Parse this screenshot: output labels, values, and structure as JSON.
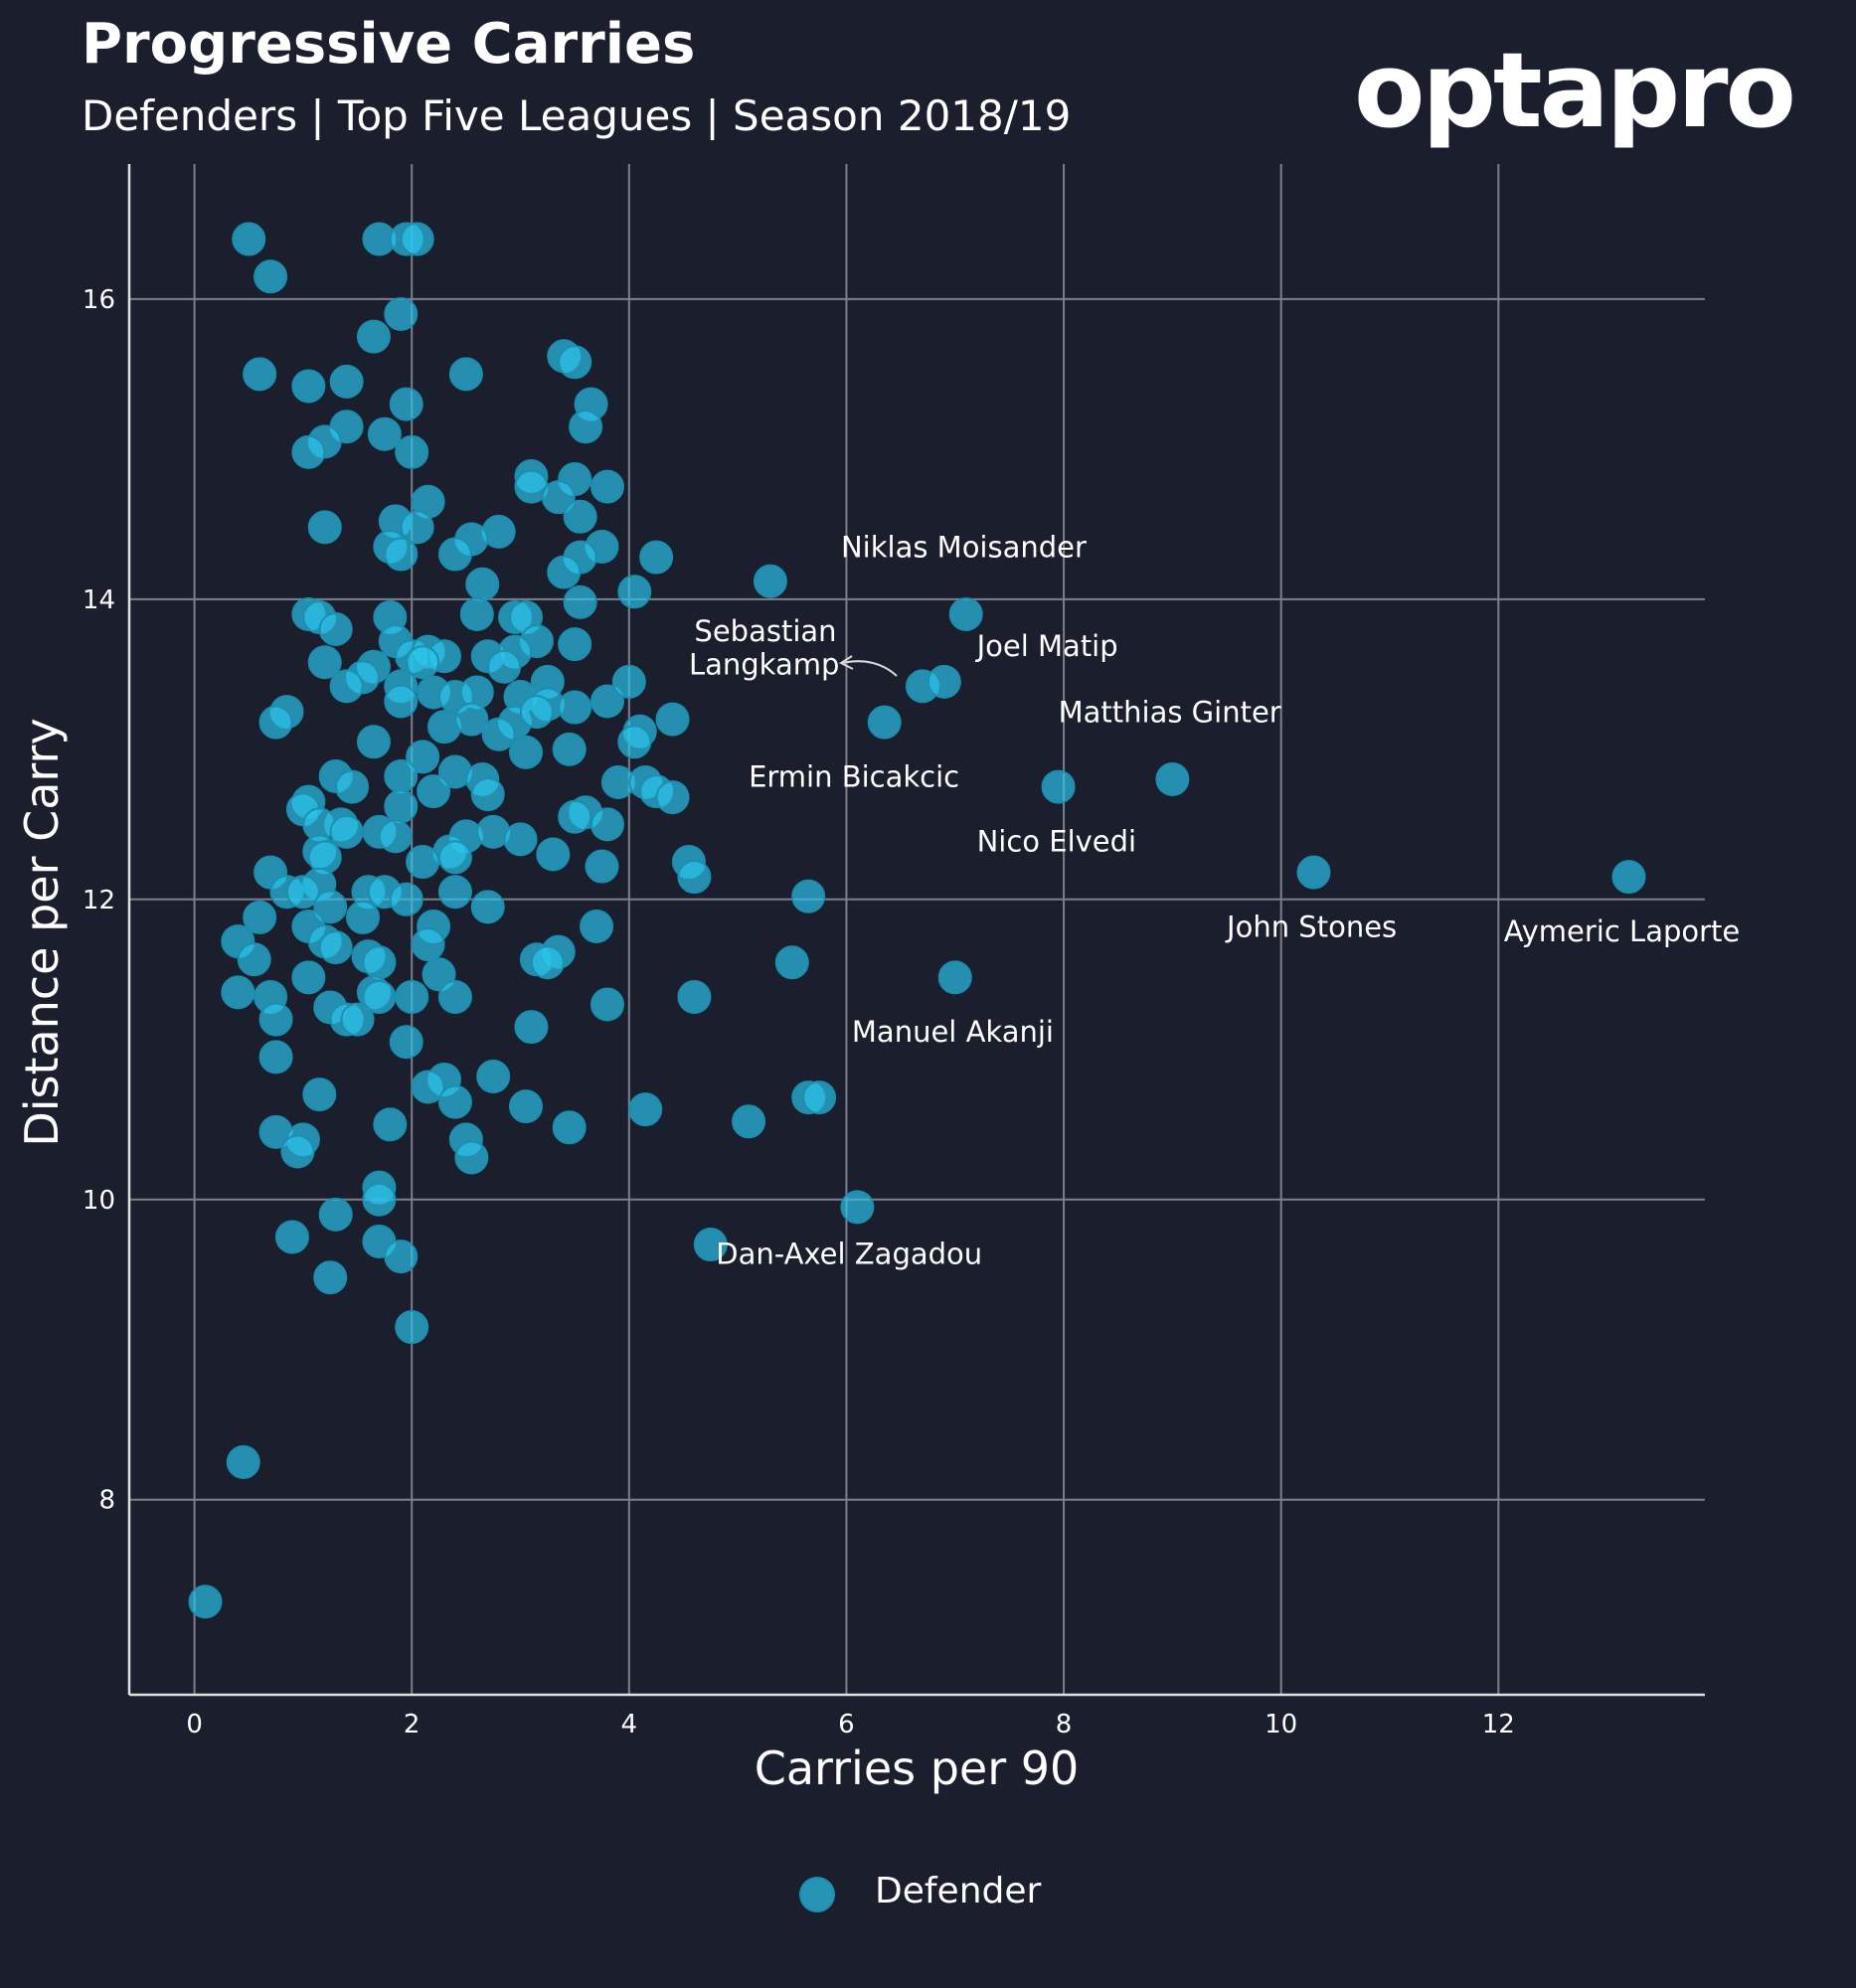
{
  "header": {
    "title": "Progressive Carries",
    "subtitle": "Defenders | Top Five Leagues | Season 2018/19",
    "brand": "optapro"
  },
  "colors": {
    "background": "#1b1e2c",
    "grid": "#7d8089",
    "point_fill": "#2cc6ee",
    "point_stroke": "#1b8fb0",
    "text": "#ffffff"
  },
  "chart_data": {
    "type": "scatter",
    "xlabel": "Carries per 90",
    "ylabel": "Distance per Carry",
    "xlim": [
      -0.6,
      13.9
    ],
    "ylim": [
      6.7,
      16.9
    ],
    "xticks": [
      0,
      2,
      4,
      6,
      8,
      10,
      12
    ],
    "yticks": [
      8,
      10,
      12,
      14,
      16
    ],
    "grid": true,
    "legend": {
      "position": "bottom-center",
      "label": "Defender"
    },
    "series": [
      {
        "name": "Defender",
        "points": [
          [
            0.5,
            16.4
          ],
          [
            0.7,
            16.15
          ],
          [
            1.7,
            16.4
          ],
          [
            1.95,
            16.4
          ],
          [
            2.05,
            16.4
          ],
          [
            1.9,
            15.9
          ],
          [
            1.65,
            15.75
          ],
          [
            0.6,
            15.5
          ],
          [
            1.05,
            15.42
          ],
          [
            1.4,
            15.45
          ],
          [
            2.5,
            15.5
          ],
          [
            3.4,
            15.62
          ],
          [
            3.5,
            15.58
          ],
          [
            1.95,
            15.3
          ],
          [
            3.65,
            15.3
          ],
          [
            1.4,
            15.15
          ],
          [
            3.6,
            15.15
          ],
          [
            1.2,
            15.05
          ],
          [
            1.75,
            15.1
          ],
          [
            1.05,
            14.98
          ],
          [
            2.0,
            14.98
          ],
          [
            3.1,
            14.82
          ],
          [
            3.1,
            14.75
          ],
          [
            3.5,
            14.8
          ],
          [
            3.8,
            14.75
          ],
          [
            3.35,
            14.68
          ],
          [
            2.15,
            14.65
          ],
          [
            1.2,
            14.48
          ],
          [
            1.85,
            14.52
          ],
          [
            2.05,
            14.48
          ],
          [
            2.8,
            14.45
          ],
          [
            2.55,
            14.4
          ],
          [
            3.55,
            14.55
          ],
          [
            1.8,
            14.35
          ],
          [
            1.9,
            14.3
          ],
          [
            2.4,
            14.3
          ],
          [
            3.75,
            14.35
          ],
          [
            3.55,
            14.28
          ],
          [
            4.25,
            14.28
          ],
          [
            3.4,
            14.18
          ],
          [
            2.65,
            14.1
          ],
          [
            4.05,
            14.05
          ],
          [
            5.3,
            14.12
          ],
          [
            3.55,
            13.98
          ],
          [
            1.05,
            13.9
          ],
          [
            1.15,
            13.88
          ],
          [
            1.8,
            13.88
          ],
          [
            2.6,
            13.9
          ],
          [
            2.95,
            13.88
          ],
          [
            3.05,
            13.88
          ],
          [
            1.3,
            13.8
          ],
          [
            1.85,
            13.72
          ],
          [
            3.15,
            13.72
          ],
          [
            3.5,
            13.7
          ],
          [
            2.0,
            13.62
          ],
          [
            2.15,
            13.65
          ],
          [
            2.3,
            13.62
          ],
          [
            2.7,
            13.62
          ],
          [
            2.95,
            13.65
          ],
          [
            1.2,
            13.58
          ],
          [
            1.65,
            13.55
          ],
          [
            2.1,
            13.58
          ],
          [
            2.85,
            13.55
          ],
          [
            3.25,
            13.45
          ],
          [
            1.55,
            13.48
          ],
          [
            1.4,
            13.42
          ],
          [
            1.9,
            13.42
          ],
          [
            2.2,
            13.38
          ],
          [
            2.4,
            13.35
          ],
          [
            2.6,
            13.38
          ],
          [
            3.0,
            13.35
          ],
          [
            3.25,
            13.3
          ],
          [
            3.5,
            13.28
          ],
          [
            3.8,
            13.32
          ],
          [
            4.0,
            13.45
          ],
          [
            1.9,
            13.32
          ],
          [
            0.85,
            13.25
          ],
          [
            0.75,
            13.18
          ],
          [
            2.3,
            13.15
          ],
          [
            2.55,
            13.2
          ],
          [
            2.95,
            13.18
          ],
          [
            3.15,
            13.25
          ],
          [
            4.1,
            13.12
          ],
          [
            4.4,
            13.2
          ],
          [
            6.35,
            13.18
          ],
          [
            6.7,
            13.42
          ],
          [
            6.9,
            13.45
          ],
          [
            7.1,
            13.9
          ],
          [
            1.65,
            13.05
          ],
          [
            2.8,
            13.1
          ],
          [
            3.05,
            12.98
          ],
          [
            3.45,
            13.0
          ],
          [
            4.05,
            13.05
          ],
          [
            2.1,
            12.95
          ],
          [
            2.4,
            12.85
          ],
          [
            1.3,
            12.82
          ],
          [
            1.9,
            12.82
          ],
          [
            2.65,
            12.8
          ],
          [
            3.9,
            12.78
          ],
          [
            4.15,
            12.78
          ],
          [
            4.25,
            12.72
          ],
          [
            4.4,
            12.68
          ],
          [
            1.45,
            12.75
          ],
          [
            2.2,
            12.72
          ],
          [
            2.7,
            12.7
          ],
          [
            1.05,
            12.65
          ],
          [
            1.0,
            12.6
          ],
          [
            1.9,
            12.62
          ],
          [
            3.6,
            12.58
          ],
          [
            3.5,
            12.55
          ],
          [
            3.8,
            12.5
          ],
          [
            1.35,
            12.5
          ],
          [
            1.15,
            12.5
          ],
          [
            1.4,
            12.45
          ],
          [
            1.7,
            12.45
          ],
          [
            1.85,
            12.42
          ],
          [
            2.5,
            12.42
          ],
          [
            2.75,
            12.45
          ],
          [
            3.0,
            12.4
          ],
          [
            1.15,
            12.32
          ],
          [
            1.2,
            12.28
          ],
          [
            2.35,
            12.32
          ],
          [
            2.4,
            12.28
          ],
          [
            2.1,
            12.25
          ],
          [
            3.3,
            12.3
          ],
          [
            3.75,
            12.22
          ],
          [
            4.55,
            12.25
          ],
          [
            4.6,
            12.15
          ],
          [
            0.7,
            12.18
          ],
          [
            1.15,
            12.1
          ],
          [
            0.85,
            12.05
          ],
          [
            1.6,
            12.05
          ],
          [
            1.75,
            12.05
          ],
          [
            2.4,
            12.05
          ],
          [
            1.0,
            12.05
          ],
          [
            1.95,
            12.0
          ],
          [
            1.25,
            11.95
          ],
          [
            2.7,
            11.95
          ],
          [
            5.65,
            12.02
          ],
          [
            0.6,
            11.88
          ],
          [
            1.55,
            11.88
          ],
          [
            1.05,
            11.82
          ],
          [
            2.2,
            11.82
          ],
          [
            3.7,
            11.82
          ],
          [
            0.4,
            11.72
          ],
          [
            1.2,
            11.72
          ],
          [
            1.3,
            11.68
          ],
          [
            2.15,
            11.7
          ],
          [
            3.35,
            11.65
          ],
          [
            0.55,
            11.6
          ],
          [
            1.6,
            11.62
          ],
          [
            1.7,
            11.58
          ],
          [
            3.15,
            11.6
          ],
          [
            3.25,
            11.58
          ],
          [
            5.5,
            11.58
          ],
          [
            1.05,
            11.48
          ],
          [
            2.25,
            11.5
          ],
          [
            7.0,
            11.48
          ],
          [
            0.4,
            11.38
          ],
          [
            0.7,
            11.35
          ],
          [
            1.65,
            11.38
          ],
          [
            1.7,
            11.35
          ],
          [
            2.0,
            11.35
          ],
          [
            2.4,
            11.35
          ],
          [
            3.8,
            11.3
          ],
          [
            4.6,
            11.35
          ],
          [
            1.25,
            11.28
          ],
          [
            1.4,
            11.2
          ],
          [
            1.5,
            11.2
          ],
          [
            0.75,
            11.2
          ],
          [
            3.1,
            11.15
          ],
          [
            1.95,
            11.05
          ],
          [
            0.75,
            10.95
          ],
          [
            2.3,
            10.8
          ],
          [
            2.75,
            10.82
          ],
          [
            2.15,
            10.75
          ],
          [
            1.15,
            10.7
          ],
          [
            2.4,
            10.65
          ],
          [
            3.05,
            10.62
          ],
          [
            4.15,
            10.6
          ],
          [
            5.65,
            10.68
          ],
          [
            5.75,
            10.68
          ],
          [
            1.8,
            10.5
          ],
          [
            3.45,
            10.48
          ],
          [
            5.1,
            10.52
          ],
          [
            0.75,
            10.45
          ],
          [
            2.5,
            10.4
          ],
          [
            1.0,
            10.4
          ],
          [
            0.95,
            10.32
          ],
          [
            2.55,
            10.28
          ],
          [
            1.7,
            10.08
          ],
          [
            1.7,
            10.0
          ],
          [
            1.3,
            9.9
          ],
          [
            6.1,
            9.95
          ],
          [
            0.9,
            9.75
          ],
          [
            1.7,
            9.72
          ],
          [
            1.9,
            9.62
          ],
          [
            4.75,
            9.7
          ],
          [
            1.25,
            9.48
          ],
          [
            2.0,
            9.15
          ],
          [
            0.45,
            8.25
          ],
          [
            0.1,
            7.32
          ],
          [
            7.95,
            12.75
          ],
          [
            9.0,
            12.8
          ],
          [
            10.3,
            12.18
          ],
          [
            13.2,
            12.15
          ]
        ]
      }
    ],
    "annotations": [
      {
        "text": "Niklas Moisander",
        "x": 5.95,
        "y": 14.28
      },
      {
        "text": "Sebastian",
        "x": 4.6,
        "y": 13.72
      },
      {
        "text": "Langkamp",
        "x": 4.55,
        "y": 13.5
      },
      {
        "text": "Joel Matip",
        "x": 7.2,
        "y": 13.62
      },
      {
        "text": "Matthias Ginter",
        "x": 7.95,
        "y": 13.18
      },
      {
        "text": "Ermin Bicakcic",
        "x": 5.1,
        "y": 12.75
      },
      {
        "text": "Nico Elvedi",
        "x": 7.2,
        "y": 12.32
      },
      {
        "text": "John Stones",
        "x": 9.5,
        "y": 11.75
      },
      {
        "text": "Aymeric Laporte",
        "x": 12.05,
        "y": 11.72
      },
      {
        "text": "Manuel Akanji",
        "x": 6.05,
        "y": 11.05
      },
      {
        "text": "Dan-Axel Zagadou",
        "x": 4.8,
        "y": 9.57
      }
    ]
  }
}
